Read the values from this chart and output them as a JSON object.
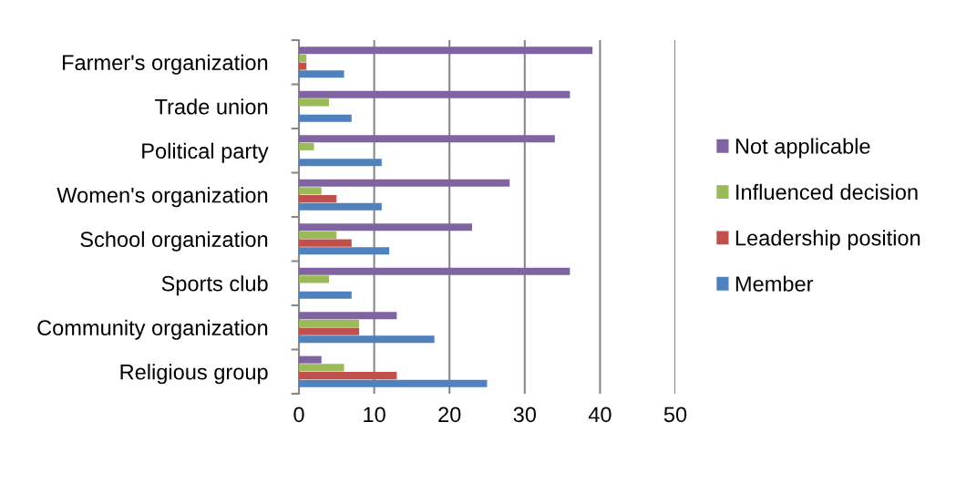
{
  "chart_data": {
    "type": "bar",
    "orientation": "horizontal",
    "categories": [
      "Farmer's organization",
      "Trade union",
      "Political party",
      "Women's organization",
      "School organization",
      "Sports club",
      "Community organization",
      "Religious group"
    ],
    "series": [
      {
        "name": "Member",
        "color": "#4f81bd",
        "values": [
          6,
          7,
          11,
          11,
          12,
          7,
          18,
          25
        ]
      },
      {
        "name": "Leadership position",
        "color": "#c0504d",
        "values": [
          1,
          null,
          null,
          5,
          7,
          null,
          8,
          13
        ]
      },
      {
        "name": "Influenced decision",
        "color": "#9bbb59",
        "values": [
          1,
          4,
          2,
          3,
          5,
          4,
          8,
          6
        ]
      },
      {
        "name": "Not applicable",
        "color": "#8064a2",
        "values": [
          39,
          36,
          34,
          28,
          23,
          36,
          13,
          3
        ]
      }
    ],
    "xlim": [
      0,
      50
    ],
    "xticks": [
      0,
      10,
      20,
      30,
      40,
      50
    ],
    "grid": "x",
    "legend": "right"
  }
}
